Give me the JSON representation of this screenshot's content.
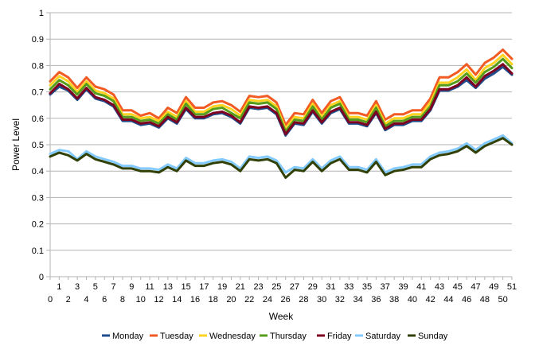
{
  "chart_data": {
    "type": "line",
    "title": "",
    "xlabel": "Week",
    "ylabel": "Power Level",
    "ylim": [
      0,
      1
    ],
    "y_ticks": [
      "0",
      "0.1",
      "0.2",
      "0.3",
      "0.4",
      "0.5",
      "0.6",
      "0.7",
      "0.8",
      "0.9",
      "1"
    ],
    "x": [
      0,
      1,
      2,
      3,
      4,
      5,
      6,
      7,
      8,
      9,
      10,
      11,
      12,
      13,
      14,
      15,
      16,
      17,
      18,
      19,
      20,
      21,
      22,
      23,
      24,
      25,
      26,
      27,
      28,
      29,
      30,
      31,
      32,
      33,
      34,
      35,
      36,
      37,
      38,
      39,
      40,
      41,
      42,
      43,
      44,
      45,
      46,
      47,
      48,
      49,
      50,
      51
    ],
    "x_tick_labels_upper": [
      "1",
      "3",
      "5",
      "7",
      "9",
      "11",
      "13",
      "15",
      "17",
      "19",
      "21",
      "23",
      "25",
      "27",
      "29",
      "31",
      "33",
      "35",
      "37",
      "39",
      "41",
      "43",
      "45",
      "47",
      "49",
      "51"
    ],
    "x_tick_labels_lower": [
      "0",
      "2",
      "4",
      "6",
      "8",
      "10",
      "12",
      "14",
      "16",
      "18",
      "20",
      "22",
      "24",
      "26",
      "28",
      "30",
      "32",
      "34",
      "36",
      "38",
      "40",
      "42",
      "44",
      "46",
      "48",
      "50"
    ],
    "grid": "horizontal",
    "legend_position": "bottom",
    "series": [
      {
        "name": "Monday",
        "color": "#1f4e8c",
        "values": [
          0.69,
          0.72,
          0.705,
          0.67,
          0.71,
          0.675,
          0.665,
          0.645,
          0.59,
          0.59,
          0.575,
          0.58,
          0.565,
          0.6,
          0.58,
          0.635,
          0.6,
          0.6,
          0.615,
          0.62,
          0.605,
          0.58,
          0.64,
          0.635,
          0.64,
          0.615,
          0.535,
          0.58,
          0.575,
          0.625,
          0.58,
          0.62,
          0.635,
          0.58,
          0.58,
          0.57,
          0.62,
          0.555,
          0.575,
          0.575,
          0.59,
          0.59,
          0.63,
          0.705,
          0.705,
          0.72,
          0.745,
          0.715,
          0.75,
          0.77,
          0.795,
          0.765
        ]
      },
      {
        "name": "Tuesday",
        "color": "#f15a22",
        "values": [
          0.74,
          0.775,
          0.755,
          0.715,
          0.755,
          0.72,
          0.71,
          0.69,
          0.63,
          0.63,
          0.61,
          0.62,
          0.6,
          0.64,
          0.62,
          0.68,
          0.64,
          0.64,
          0.66,
          0.665,
          0.65,
          0.625,
          0.685,
          0.68,
          0.685,
          0.66,
          0.575,
          0.62,
          0.615,
          0.67,
          0.62,
          0.665,
          0.68,
          0.62,
          0.62,
          0.61,
          0.665,
          0.595,
          0.615,
          0.615,
          0.63,
          0.63,
          0.675,
          0.755,
          0.755,
          0.775,
          0.805,
          0.765,
          0.81,
          0.83,
          0.86,
          0.825
        ]
      },
      {
        "name": "Wednesday",
        "color": "#ffd320",
        "values": [
          0.725,
          0.76,
          0.74,
          0.7,
          0.74,
          0.705,
          0.695,
          0.675,
          0.615,
          0.615,
          0.6,
          0.605,
          0.59,
          0.625,
          0.605,
          0.665,
          0.625,
          0.625,
          0.645,
          0.65,
          0.635,
          0.61,
          0.67,
          0.665,
          0.67,
          0.645,
          0.56,
          0.605,
          0.6,
          0.655,
          0.605,
          0.65,
          0.665,
          0.605,
          0.605,
          0.595,
          0.65,
          0.58,
          0.6,
          0.6,
          0.615,
          0.615,
          0.66,
          0.735,
          0.735,
          0.755,
          0.785,
          0.745,
          0.79,
          0.81,
          0.84,
          0.805
        ]
      },
      {
        "name": "Thursday",
        "color": "#579d1c",
        "values": [
          0.71,
          0.745,
          0.725,
          0.69,
          0.73,
          0.695,
          0.685,
          0.665,
          0.605,
          0.605,
          0.59,
          0.595,
          0.58,
          0.615,
          0.595,
          0.655,
          0.615,
          0.615,
          0.635,
          0.64,
          0.62,
          0.6,
          0.66,
          0.655,
          0.66,
          0.635,
          0.55,
          0.595,
          0.59,
          0.645,
          0.595,
          0.64,
          0.655,
          0.595,
          0.595,
          0.585,
          0.64,
          0.57,
          0.59,
          0.59,
          0.605,
          0.605,
          0.645,
          0.725,
          0.725,
          0.74,
          0.77,
          0.735,
          0.775,
          0.795,
          0.825,
          0.79
        ]
      },
      {
        "name": "Friday",
        "color": "#7e0021",
        "values": [
          0.695,
          0.73,
          0.71,
          0.675,
          0.715,
          0.68,
          0.67,
          0.65,
          0.595,
          0.595,
          0.58,
          0.585,
          0.57,
          0.605,
          0.585,
          0.64,
          0.605,
          0.605,
          0.62,
          0.625,
          0.61,
          0.585,
          0.645,
          0.64,
          0.645,
          0.62,
          0.54,
          0.585,
          0.58,
          0.63,
          0.585,
          0.625,
          0.64,
          0.585,
          0.585,
          0.575,
          0.625,
          0.56,
          0.58,
          0.58,
          0.595,
          0.595,
          0.635,
          0.71,
          0.71,
          0.725,
          0.755,
          0.72,
          0.76,
          0.78,
          0.805,
          0.77
        ]
      },
      {
        "name": "Saturday",
        "color": "#83caff",
        "values": [
          0.465,
          0.48,
          0.475,
          0.445,
          0.475,
          0.455,
          0.445,
          0.435,
          0.42,
          0.42,
          0.41,
          0.41,
          0.405,
          0.425,
          0.41,
          0.45,
          0.43,
          0.43,
          0.44,
          0.445,
          0.435,
          0.41,
          0.455,
          0.45,
          0.455,
          0.44,
          0.395,
          0.415,
          0.41,
          0.445,
          0.41,
          0.44,
          0.455,
          0.415,
          0.415,
          0.405,
          0.445,
          0.395,
          0.41,
          0.415,
          0.425,
          0.425,
          0.455,
          0.47,
          0.475,
          0.485,
          0.505,
          0.48,
          0.505,
          0.52,
          0.535,
          0.505
        ]
      },
      {
        "name": "Sunday",
        "color": "#314004",
        "values": [
          0.455,
          0.47,
          0.46,
          0.44,
          0.465,
          0.445,
          0.435,
          0.425,
          0.41,
          0.41,
          0.4,
          0.4,
          0.395,
          0.415,
          0.4,
          0.44,
          0.42,
          0.42,
          0.43,
          0.435,
          0.425,
          0.4,
          0.445,
          0.44,
          0.445,
          0.43,
          0.375,
          0.405,
          0.4,
          0.435,
          0.4,
          0.43,
          0.445,
          0.405,
          0.405,
          0.395,
          0.435,
          0.385,
          0.4,
          0.405,
          0.415,
          0.415,
          0.445,
          0.46,
          0.465,
          0.475,
          0.495,
          0.47,
          0.495,
          0.51,
          0.525,
          0.5
        ]
      }
    ]
  }
}
